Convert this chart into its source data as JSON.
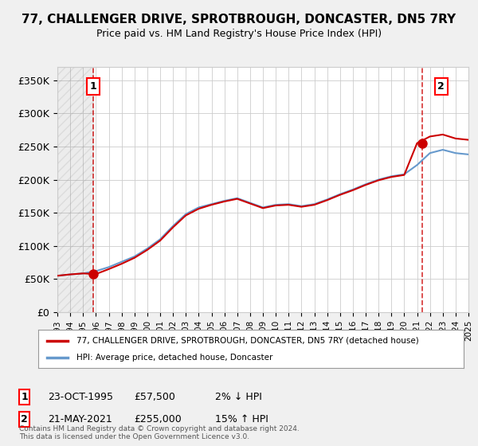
{
  "title": "77, CHALLENGER DRIVE, SPROTBROUGH, DONCASTER, DN5 7RY",
  "subtitle": "Price paid vs. HM Land Registry's House Price Index (HPI)",
  "legend_line1": "77, CHALLENGER DRIVE, SPROTBROUGH, DONCASTER, DN5 7RY (detached house)",
  "legend_line2": "HPI: Average price, detached house, Doncaster",
  "footnote": "Contains HM Land Registry data © Crown copyright and database right 2024.\nThis data is licensed under the Open Government Licence v3.0.",
  "annotation1_label": "1",
  "annotation1_date": "23-OCT-1995",
  "annotation1_price": "£57,500",
  "annotation1_hpi": "2% ↓ HPI",
  "annotation2_label": "2",
  "annotation2_date": "21-MAY-2021",
  "annotation2_price": "£255,000",
  "annotation2_hpi": "15% ↑ HPI",
  "sale1_x": 1995.81,
  "sale1_y": 57500,
  "sale2_x": 2021.38,
  "sale2_y": 255000,
  "sale_color": "#cc0000",
  "hpi_color": "#6699cc",
  "background_color": "#f0f0f0",
  "plot_bg_color": "#ffffff",
  "ylim": [
    0,
    370000
  ],
  "xlim": [
    1993,
    2025
  ],
  "yticks": [
    0,
    50000,
    100000,
    150000,
    200000,
    250000,
    300000,
    350000
  ],
  "ytick_labels": [
    "£0",
    "£50K",
    "£100K",
    "£150K",
    "£200K",
    "£250K",
    "£300K",
    "£350K"
  ],
  "xticks": [
    1993,
    1994,
    1995,
    1996,
    1997,
    1998,
    1999,
    2000,
    2001,
    2002,
    2003,
    2004,
    2005,
    2006,
    2007,
    2008,
    2009,
    2010,
    2011,
    2012,
    2013,
    2014,
    2015,
    2016,
    2017,
    2018,
    2019,
    2020,
    2021,
    2022,
    2023,
    2024,
    2025
  ],
  "hpi_years": [
    1993,
    1994,
    1995,
    1996,
    1997,
    1998,
    1999,
    2000,
    2001,
    2002,
    2003,
    2004,
    2005,
    2006,
    2007,
    2008,
    2009,
    2010,
    2011,
    2012,
    2013,
    2014,
    2015,
    2016,
    2017,
    2018,
    2019,
    2020,
    2021,
    2022,
    2023,
    2024,
    2025
  ],
  "hpi_values": [
    55000,
    57000,
    58500,
    62000,
    68000,
    76000,
    84000,
    96000,
    110000,
    130000,
    148000,
    158000,
    163000,
    168000,
    172000,
    165000,
    158000,
    162000,
    163000,
    160000,
    163000,
    170000,
    178000,
    185000,
    193000,
    200000,
    205000,
    208000,
    222000,
    240000,
    245000,
    240000,
    238000
  ],
  "sale_years": [
    1993,
    1994,
    1995,
    1996,
    1997,
    1998,
    1999,
    2000,
    2001,
    2002,
    2003,
    2004,
    2005,
    2006,
    2007,
    2008,
    2009,
    2010,
    2011,
    2012,
    2013,
    2014,
    2015,
    2016,
    2017,
    2018,
    2019,
    2020,
    2021,
    2022,
    2023,
    2024,
    2025
  ],
  "sale_values": [
    55000,
    57000,
    58500,
    57500,
    65000,
    73000,
    82000,
    94000,
    108000,
    128000,
    146000,
    156000,
    162000,
    167000,
    171000,
    164000,
    157000,
    161000,
    162000,
    159000,
    162000,
    169000,
    177000,
    184000,
    192000,
    199000,
    204000,
    207000,
    255000,
    265000,
    268000,
    262000,
    260000
  ]
}
